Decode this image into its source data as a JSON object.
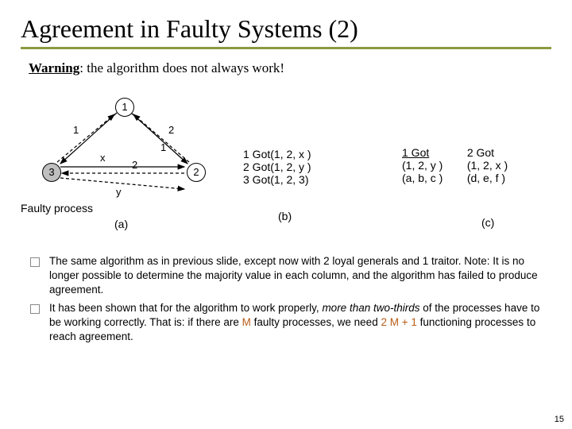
{
  "title": "Agreement in Faulty Systems (2)",
  "warning": {
    "label": "Warning",
    "text": ": the algorithm does not always work!"
  },
  "colors": {
    "rule": "#8b9a3d",
    "accent": "#b85c17",
    "faulty_fill": "#bfbfbf",
    "text": "#000000",
    "background": "#ffffff"
  },
  "figure": {
    "panel_a": {
      "nodes": [
        {
          "id": "1",
          "faulty": false
        },
        {
          "id": "2",
          "faulty": false
        },
        {
          "id": "3",
          "faulty": true
        }
      ],
      "edge_labels": {
        "n1_n3": "1",
        "n1_n2": "2",
        "n3_top": "x",
        "n3_bot": "y",
        "n2_top": "2",
        "n2_bot": "1"
      },
      "faulty_caption": "Faulty process",
      "caption": "(a)"
    },
    "panel_b": {
      "lines": [
        "1  Got(1, 2, x )",
        "2  Got(1, 2, y )",
        "3  Got(1, 2, 3)"
      ],
      "caption": "(b)"
    },
    "panel_c": {
      "col1": {
        "head": "1 Got",
        "l1": "(1, 2, y )",
        "l2": "(a, b, c )"
      },
      "col2": {
        "head": "2 Got",
        "l1": "(1, 2, x )",
        "l2": "(d, e, f )"
      },
      "caption": "(c)"
    }
  },
  "bullets": [
    "The same algorithm as in previous slide, except now with 2 loyal generals and 1 traitor. Note: It is no longer possible to determine the majority value in each column, and the algorithm has failed to produce agreement.",
    "It has been shown that for the algorithm to work properly, <span class=\"italic\">more than two-thirds</span> of the processes have to be working correctly. That is: if there are <span class=\"accent\">M</span> faulty processes, we need <span class=\"accent\">2 M + 1</span> functioning processes to reach agreement."
  ],
  "page_number": "15"
}
